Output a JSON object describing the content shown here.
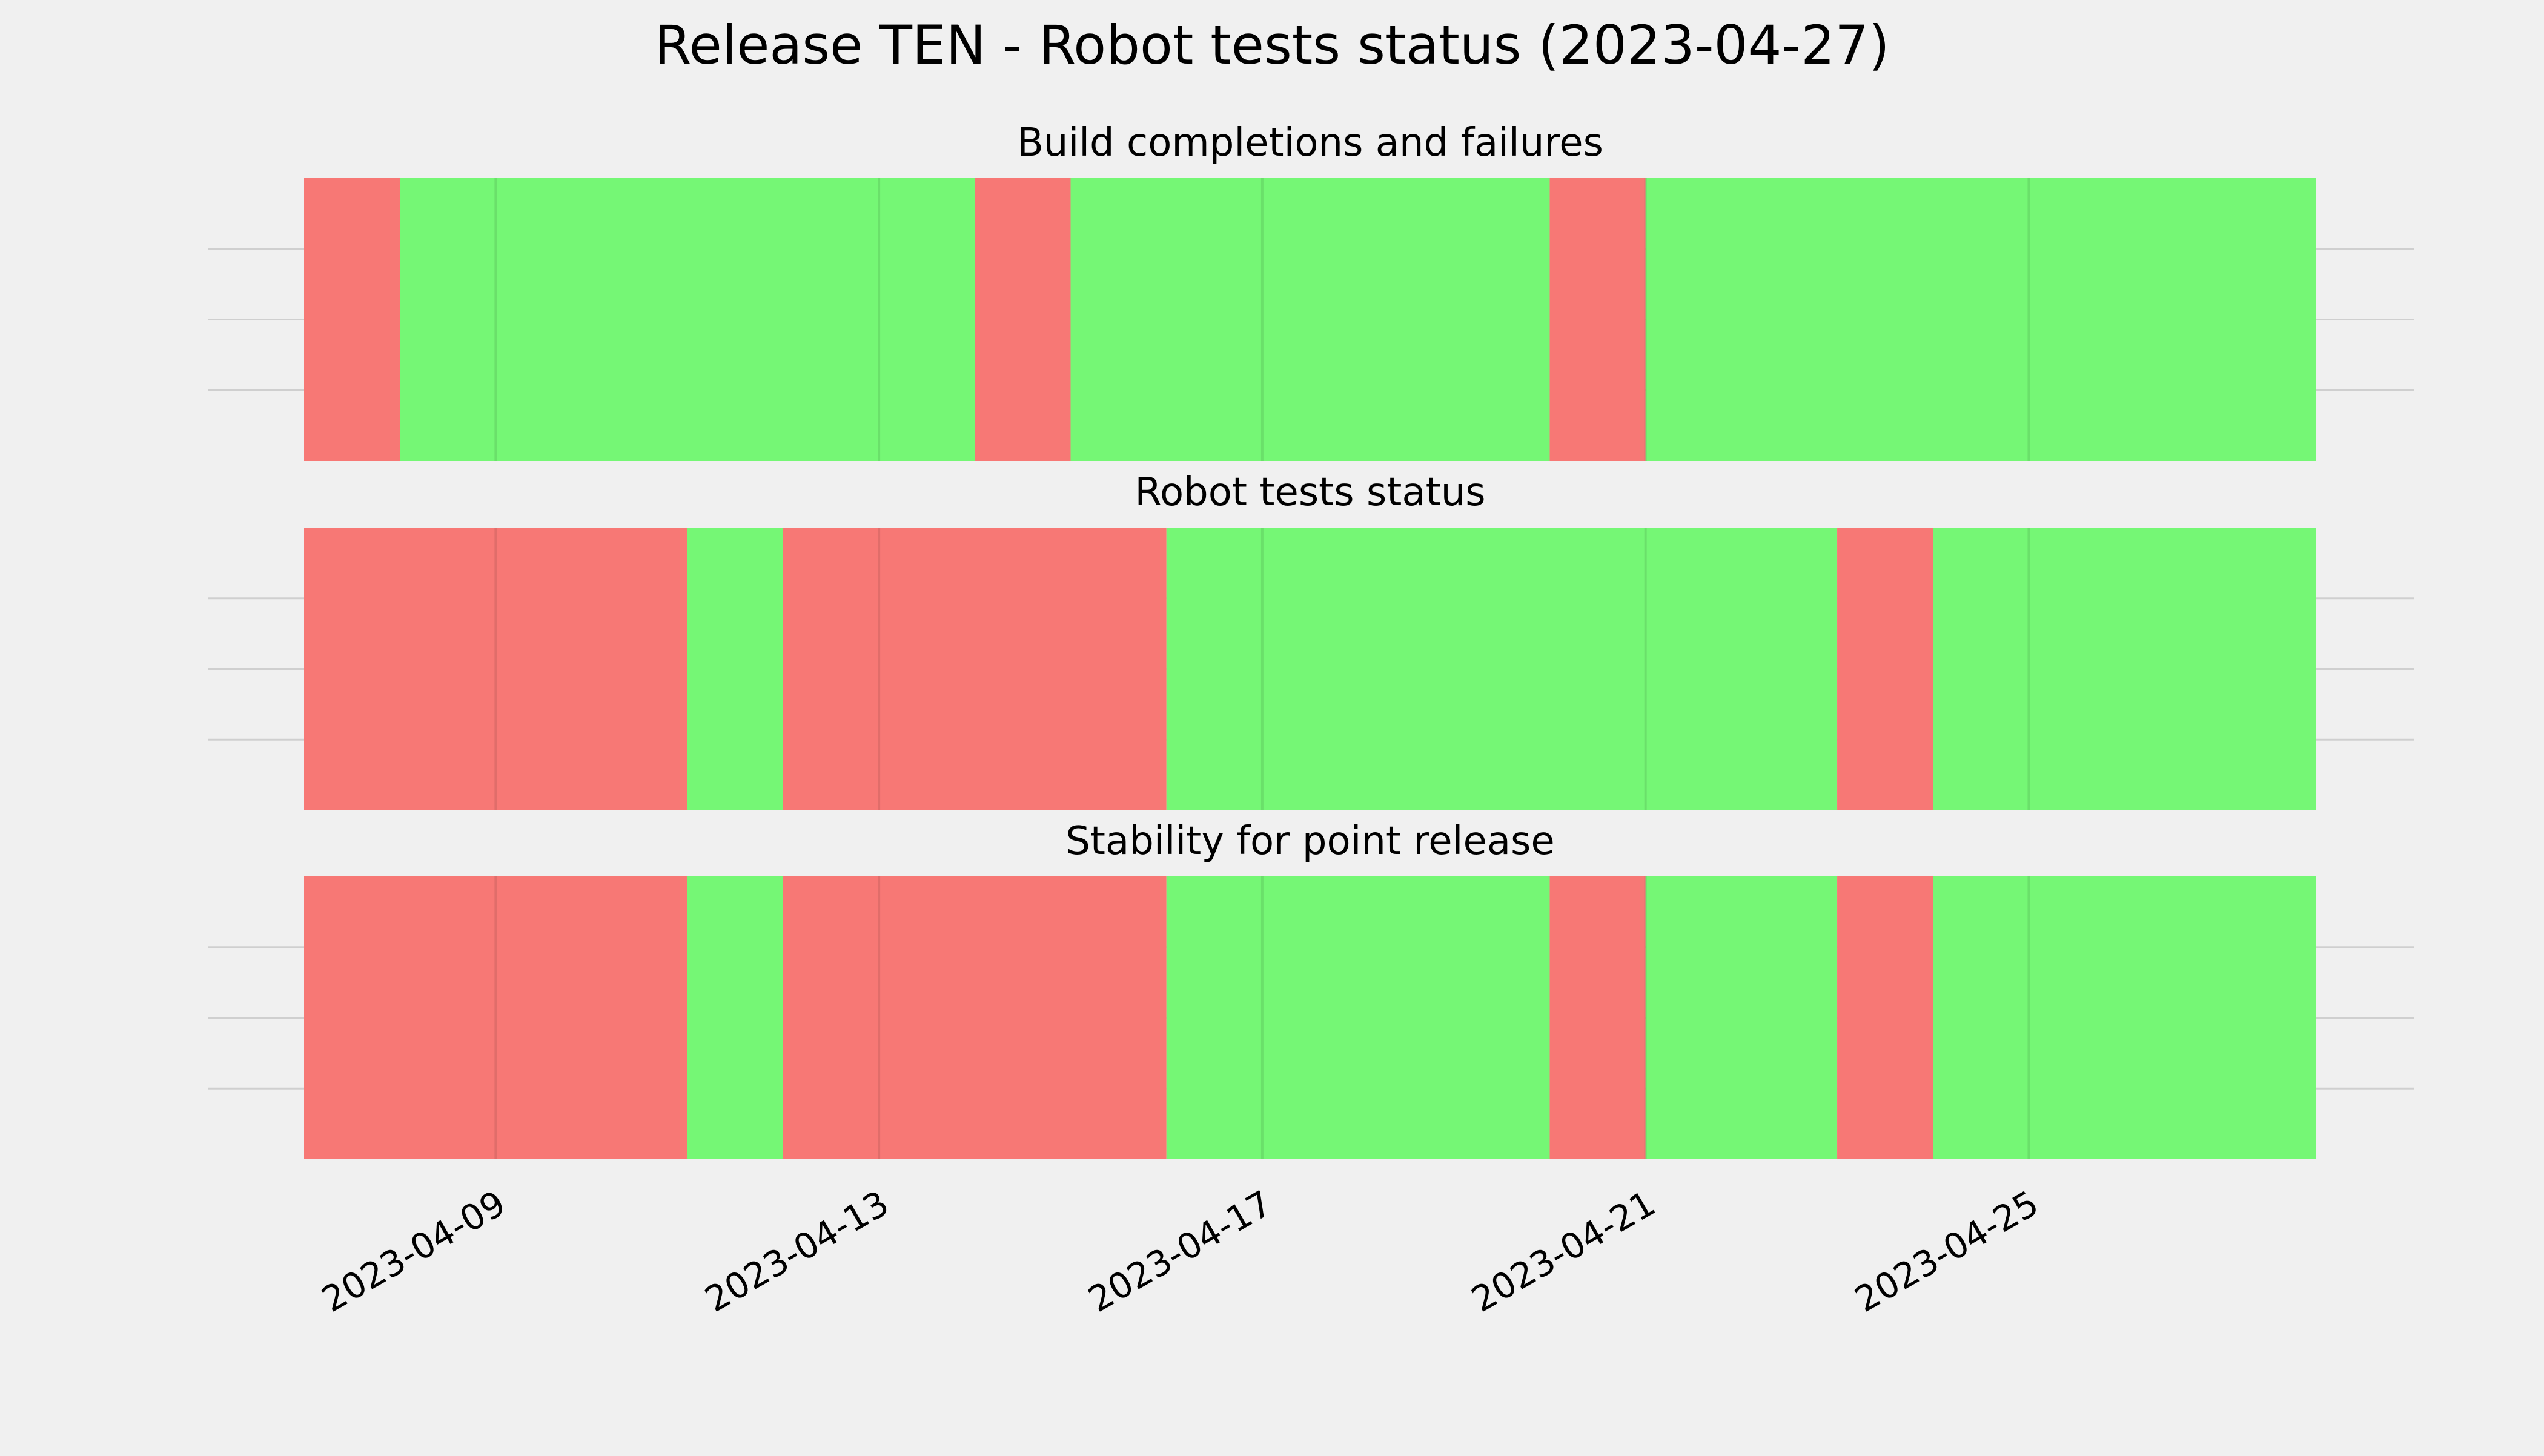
{
  "chart_data": {
    "type": "timeline",
    "title": "Release TEN - Robot tests status (2023-04-27)",
    "x_axis": {
      "type": "date",
      "range": [
        "2023-04-07",
        "2023-04-28"
      ],
      "ticks": [
        "2023-04-09",
        "2023-04-13",
        "2023-04-17",
        "2023-04-21",
        "2023-04-25"
      ]
    },
    "grid": true,
    "colors": {
      "pass": "#75f775",
      "fail": "#f77875",
      "background": "#f0f0f0",
      "grid": "#cfcfcf"
    },
    "panels": [
      {
        "title": "Build completions and failures",
        "segments": [
          {
            "start": "2023-04-07",
            "end": "2023-04-08",
            "status": "fail"
          },
          {
            "start": "2023-04-08",
            "end": "2023-04-14",
            "status": "pass"
          },
          {
            "start": "2023-04-14",
            "end": "2023-04-15",
            "status": "fail"
          },
          {
            "start": "2023-04-15",
            "end": "2023-04-20",
            "status": "pass"
          },
          {
            "start": "2023-04-20",
            "end": "2023-04-21",
            "status": "fail"
          },
          {
            "start": "2023-04-21",
            "end": "2023-04-28",
            "status": "pass"
          }
        ]
      },
      {
        "title": "Robot tests status",
        "segments": [
          {
            "start": "2023-04-07",
            "end": "2023-04-11",
            "status": "fail"
          },
          {
            "start": "2023-04-11",
            "end": "2023-04-12",
            "status": "pass"
          },
          {
            "start": "2023-04-12",
            "end": "2023-04-16",
            "status": "fail"
          },
          {
            "start": "2023-04-16",
            "end": "2023-04-23",
            "status": "pass"
          },
          {
            "start": "2023-04-23",
            "end": "2023-04-24",
            "status": "fail"
          },
          {
            "start": "2023-04-24",
            "end": "2023-04-28",
            "status": "pass"
          }
        ]
      },
      {
        "title": "Stability for point release",
        "segments": [
          {
            "start": "2023-04-07",
            "end": "2023-04-11",
            "status": "fail"
          },
          {
            "start": "2023-04-11",
            "end": "2023-04-12",
            "status": "pass"
          },
          {
            "start": "2023-04-12",
            "end": "2023-04-16",
            "status": "fail"
          },
          {
            "start": "2023-04-16",
            "end": "2023-04-20",
            "status": "pass"
          },
          {
            "start": "2023-04-20",
            "end": "2023-04-21",
            "status": "fail"
          },
          {
            "start": "2023-04-21",
            "end": "2023-04-23",
            "status": "pass"
          },
          {
            "start": "2023-04-23",
            "end": "2023-04-24",
            "status": "fail"
          },
          {
            "start": "2023-04-24",
            "end": "2023-04-28",
            "status": "pass"
          }
        ]
      }
    ]
  }
}
